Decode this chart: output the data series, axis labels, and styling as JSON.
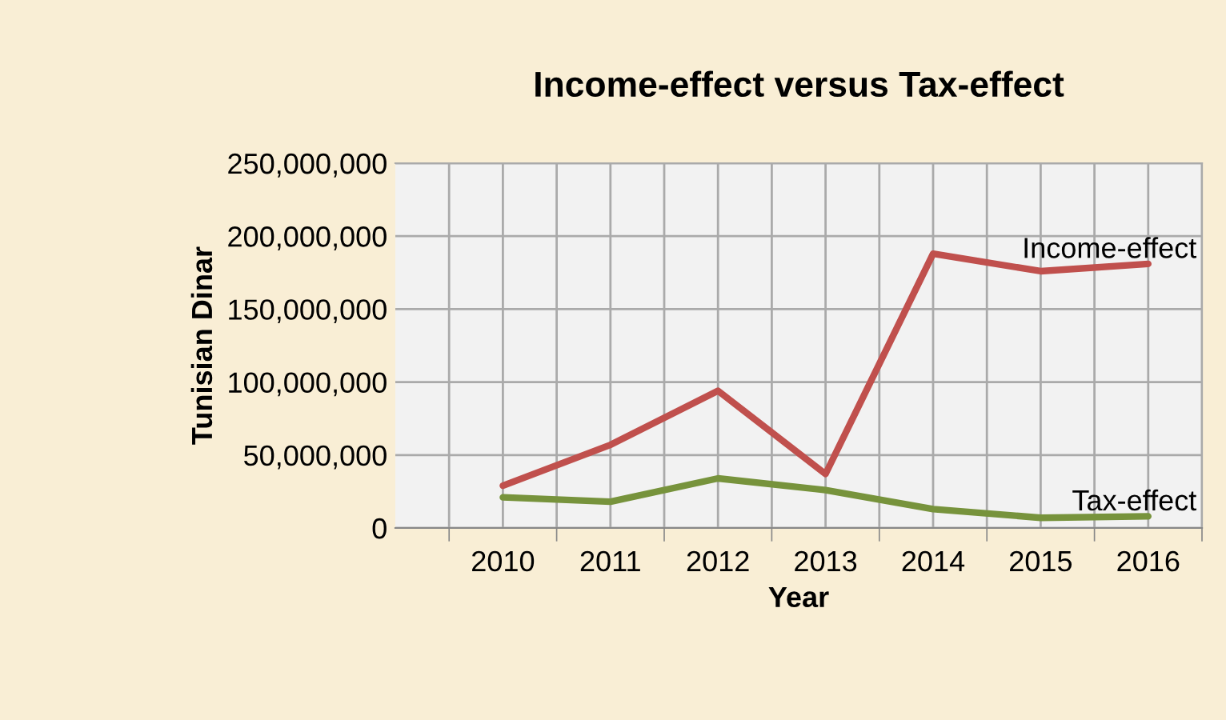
{
  "chart_data": {
    "type": "line",
    "title": "Income-effect versus Tax-effect",
    "xlabel": "Year",
    "ylabel": "Tunisian Dinar",
    "categories": [
      "2010",
      "2011",
      "2012",
      "2013",
      "2014",
      "2015",
      "2016"
    ],
    "series": [
      {
        "name": "Income-effect",
        "color": "#c0504d",
        "values": [
          29000000,
          57000000,
          94000000,
          37000000,
          188000000,
          176000000,
          181000000
        ]
      },
      {
        "name": "Tax-effect",
        "color": "#77933c",
        "values": [
          21000000,
          18000000,
          34000000,
          26000000,
          13000000,
          7000000,
          8000000
        ]
      }
    ],
    "ylim": [
      0,
      250000000
    ],
    "yticks": [
      0,
      {
        "value": 50000000,
        "label": "50,000,000"
      },
      {
        "value": 100000000,
        "label": "100,000,000"
      },
      {
        "value": 150000000,
        "label": "150,000,000"
      },
      {
        "value": 200000000,
        "label": "200,000,000"
      },
      {
        "value": 250000000,
        "label": "250,000,000"
      }
    ],
    "grid": true,
    "legend": false,
    "marker": "none",
    "line_style": "solid"
  }
}
